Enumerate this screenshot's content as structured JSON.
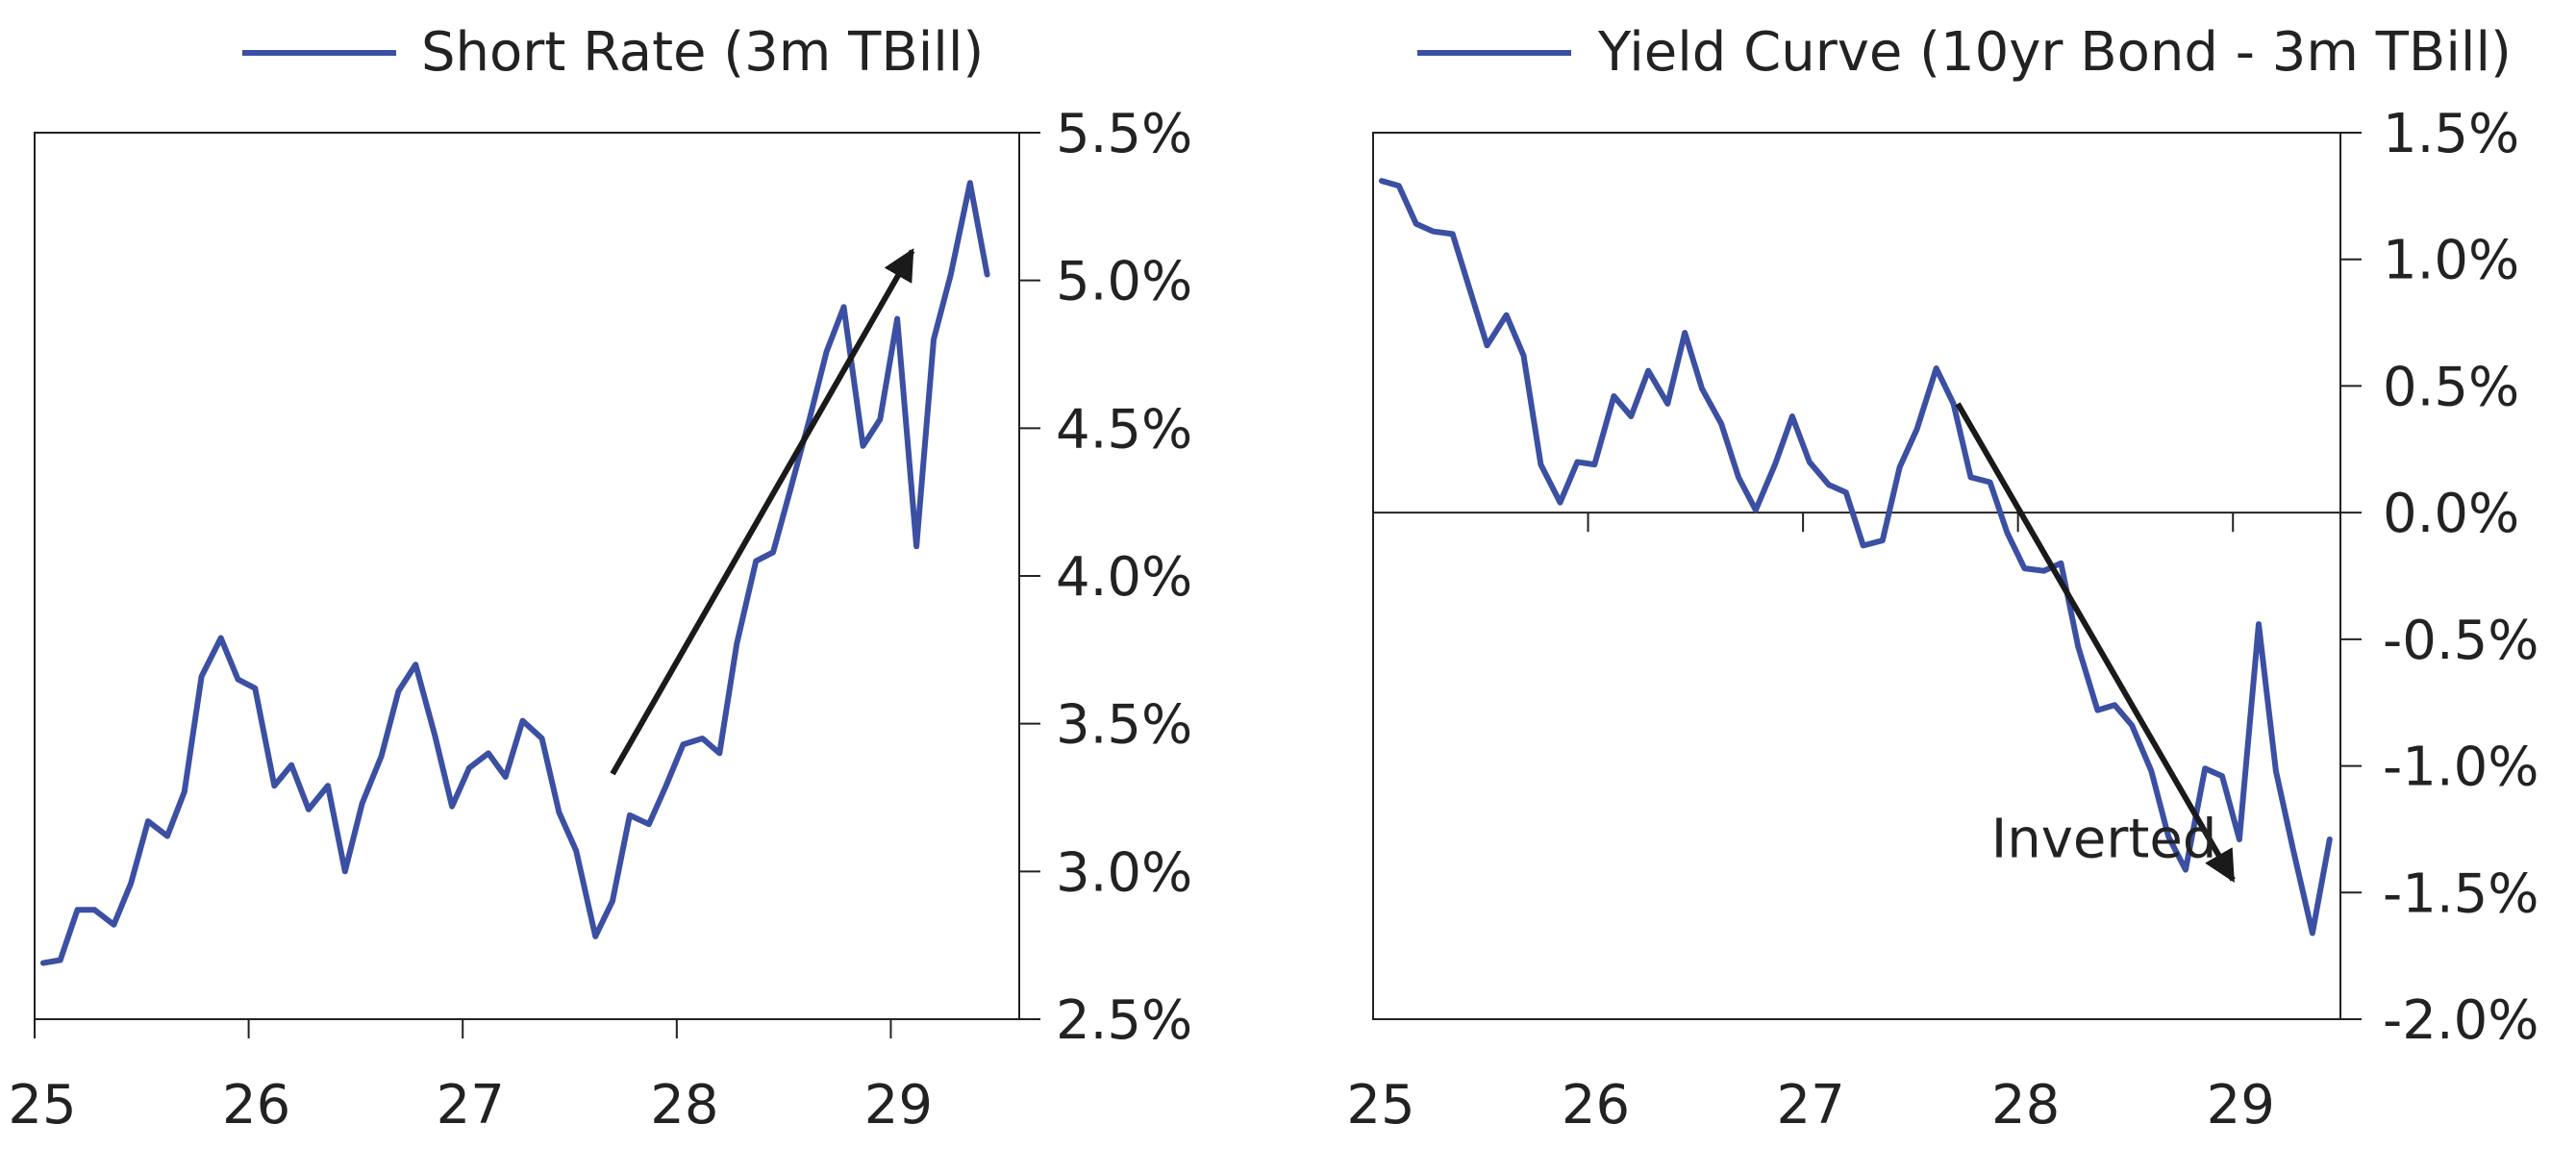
{
  "chart_data": [
    {
      "type": "line",
      "legend": "Short Rate (3m TBill)",
      "legend_position": "top",
      "x_ticks": [
        "25",
        "26",
        "27",
        "28",
        "29"
      ],
      "x_tick_values": [
        25,
        26,
        27,
        28,
        29
      ],
      "xlim": [
        25,
        29.6
      ],
      "y_ticks": [
        "5.5%",
        "5.0%",
        "4.5%",
        "4.0%",
        "3.5%",
        "3.0%",
        "2.5%"
      ],
      "y_tick_values": [
        5.5,
        5.0,
        4.5,
        4.0,
        3.5,
        3.0,
        2.5
      ],
      "ylim": [
        2.5,
        5.5
      ],
      "y_axis_side": "right",
      "grid": false,
      "series_color": "#3b4fa3",
      "series": [
        {
          "name": "Short Rate (3m TBill)",
          "x": [
            25.04,
            25.12,
            25.2,
            25.28,
            25.37,
            25.45,
            25.53,
            25.62,
            25.7,
            25.78,
            25.87,
            25.95,
            26.03,
            26.12,
            26.2,
            26.28,
            26.37,
            26.45,
            26.53,
            26.62,
            26.7,
            26.78,
            26.87,
            26.95,
            27.03,
            27.12,
            27.2,
            27.28,
            27.37,
            27.45,
            27.53,
            27.62,
            27.7,
            27.78,
            27.87,
            27.95,
            28.03,
            28.12,
            28.2,
            28.28,
            28.37,
            28.45,
            28.53,
            28.62,
            28.7,
            28.78,
            28.87,
            28.95,
            29.03,
            29.12,
            29.2,
            29.28,
            29.37,
            29.45
          ],
          "values": [
            2.69,
            2.7,
            2.87,
            2.87,
            2.82,
            2.96,
            3.17,
            3.12,
            3.27,
            3.66,
            3.79,
            3.65,
            3.62,
            3.29,
            3.36,
            3.21,
            3.29,
            3.0,
            3.23,
            3.39,
            3.61,
            3.7,
            3.46,
            3.22,
            3.35,
            3.4,
            3.32,
            3.51,
            3.45,
            3.2,
            3.07,
            2.78,
            2.9,
            3.19,
            3.16,
            3.29,
            3.43,
            3.45,
            3.4,
            3.77,
            4.05,
            4.08,
            4.29,
            4.53,
            4.76,
            4.91,
            4.44,
            4.53,
            4.87,
            4.1,
            4.8,
            5.02,
            5.33,
            5.02
          ]
        }
      ],
      "annotations": [
        {
          "type": "arrow",
          "from": [
            27.7,
            3.33
          ],
          "to": [
            29.1,
            5.1
          ]
        }
      ]
    },
    {
      "type": "line",
      "legend": "Yield Curve (10yr Bond - 3m TBill)",
      "legend_position": "top",
      "x_ticks": [
        "25",
        "26",
        "27",
        "28",
        "29"
      ],
      "x_tick_values": [
        25,
        26,
        27,
        28,
        29
      ],
      "xlim": [
        25,
        29.5
      ],
      "y_ticks": [
        "1.5%",
        "1.0%",
        "0.5%",
        "0.0%",
        "-0.5%",
        "-1.0%",
        "-1.5%",
        "-2.0%"
      ],
      "y_tick_values": [
        1.5,
        1.0,
        0.5,
        0.0,
        -0.5,
        -1.0,
        -1.5,
        -2.0
      ],
      "ylim": [
        -2.0,
        1.5
      ],
      "y_axis_side": "right",
      "zero_line": true,
      "grid": false,
      "series_color": "#3b4fa3",
      "series": [
        {
          "name": "Yield Curve (10yr Bond - 3m TBill)",
          "x": [
            25.04,
            25.12,
            25.2,
            25.28,
            25.37,
            25.45,
            25.53,
            25.62,
            25.7,
            25.78,
            25.87,
            25.95,
            26.03,
            26.12,
            26.2,
            26.28,
            26.37,
            26.45,
            26.53,
            26.62,
            26.7,
            26.78,
            26.87,
            26.95,
            27.03,
            27.12,
            27.2,
            27.28,
            27.37,
            27.45,
            27.53,
            27.62,
            27.7,
            27.78,
            27.87,
            27.95,
            28.03,
            28.12,
            28.2,
            28.28,
            28.37,
            28.45,
            28.53,
            28.62,
            28.7,
            28.78,
            28.87,
            28.95,
            29.03,
            29.12,
            29.2,
            29.28,
            29.37,
            29.45
          ],
          "values": [
            1.31,
            1.29,
            1.14,
            1.11,
            1.1,
            0.88,
            0.66,
            0.78,
            0.62,
            0.19,
            0.04,
            0.2,
            0.19,
            0.46,
            0.38,
            0.56,
            0.43,
            0.71,
            0.49,
            0.35,
            0.14,
            0.01,
            0.19,
            0.38,
            0.2,
            0.11,
            0.08,
            -0.13,
            -0.11,
            0.18,
            0.33,
            0.57,
            0.43,
            0.14,
            0.12,
            -0.08,
            -0.22,
            -0.23,
            -0.2,
            -0.53,
            -0.78,
            -0.76,
            -0.84,
            -1.02,
            -1.28,
            -1.41,
            -1.01,
            -1.04,
            -1.29,
            -0.44,
            -1.02,
            -1.33,
            -1.66,
            -1.29
          ]
        }
      ],
      "annotations": [
        {
          "type": "arrow",
          "from": [
            27.72,
            0.43
          ],
          "to": [
            29.0,
            -1.45
          ]
        },
        {
          "type": "text",
          "text": "Inverted",
          "x": 28.4,
          "y": -1.36
        }
      ]
    }
  ]
}
